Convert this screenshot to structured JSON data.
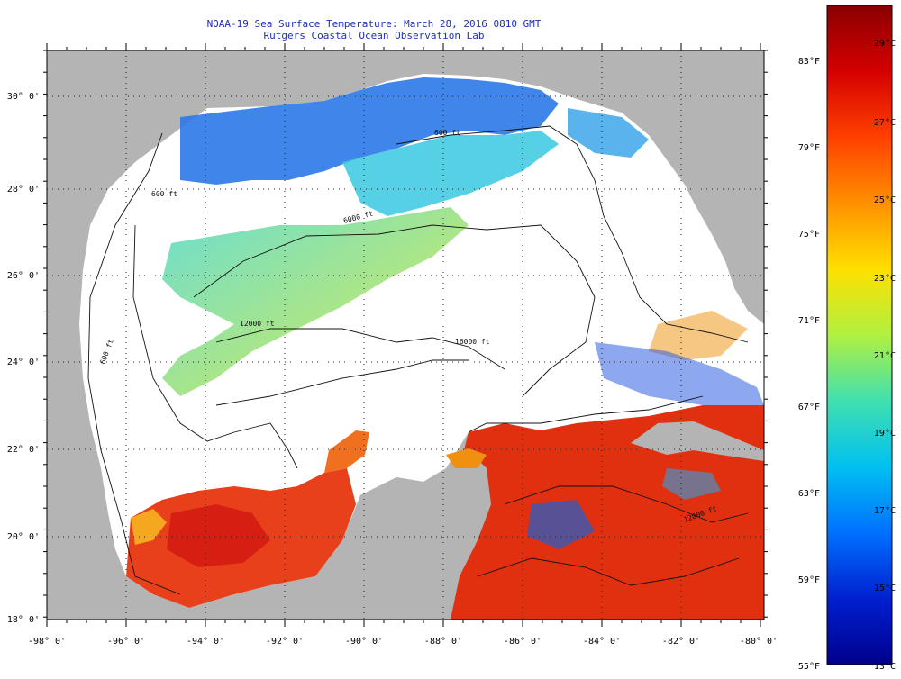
{
  "title_line1": "NOAA-19 Sea Surface Temperature:  March 28, 2016 0810 GMT",
  "title_line2": "Rutgers Coastal Ocean Observation Lab",
  "lat_ticks": [
    "30° 0'",
    "28° 0'",
    "26° 0'",
    "24° 0'",
    "22° 0'",
    "20° 0'",
    "18° 0'"
  ],
  "lon_ticks": [
    "-98° 0'",
    "-96° 0'",
    "-94° 0'",
    "-92° 0'",
    "-90° 0'",
    "-88° 0'",
    "-86° 0'",
    "-84° 0'",
    "-82° 0'",
    "-80° 0'"
  ],
  "contour_labels": [
    "600 ft",
    "600 ft",
    "6000 ft",
    "12000 ft",
    "16000 ft",
    "600 ft",
    "12000 ft"
  ],
  "colorbar": {
    "fahrenheit": [
      "83°F",
      "79°F",
      "75°F",
      "71°F",
      "67°F",
      "63°F",
      "59°F",
      "55°F"
    ],
    "celsius": [
      "29°C",
      "27°C",
      "25°C",
      "23°C",
      "21°C",
      "19°C",
      "17°C",
      "15°C",
      "13°C"
    ],
    "colors": [
      "#8b0000",
      "#d40000",
      "#ff4000",
      "#ff9000",
      "#ffe000",
      "#b0f040",
      "#40e0b0",
      "#00c0f0",
      "#0070ff",
      "#0020d0",
      "#00008b"
    ]
  },
  "colors": {
    "land": "#b4b4b4",
    "ocean_nodata": "#ffffff",
    "title_text": "#1d2fb8"
  }
}
